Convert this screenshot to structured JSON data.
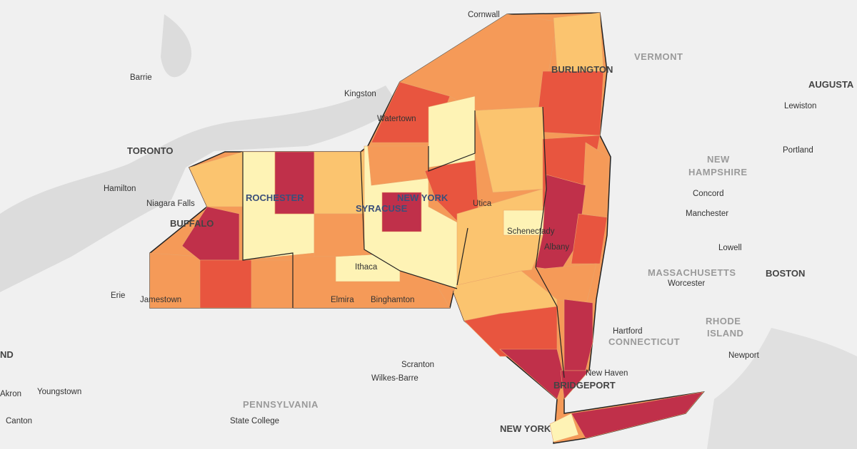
{
  "map": {
    "labels": [
      "Cornwall",
      "VERMONT",
      "Barrie",
      "BURLINGTON",
      "AUGUSTA",
      "Kingston",
      "Watertown",
      "Lewiston",
      "TORONTO",
      "NEW",
      "HAMPSHIRE",
      "Portland",
      "Hamilton",
      "ROCHESTER",
      "NEW YORK",
      "Utica",
      "Concord",
      "Niagara Falls",
      "SYRACUSE",
      "Manchester",
      "BUFFALO",
      "Schenectady",
      "Albany",
      "Lowell",
      "MASSACHUSETTS",
      "BOSTON",
      "Worcester",
      "Erie",
      "Jamestown",
      "Ithaca",
      "Elmira",
      "Binghamton",
      "Hartford",
      "RHODE",
      "ISLAND",
      "CONNECTICUT",
      "Newport",
      "Scranton",
      "Wilkes-Barre",
      "New Haven",
      "ND",
      "Akron",
      "Youngstown",
      "BRIDGEPORT",
      "PENNSYLVANIA",
      "Canton",
      "State College",
      "NEW YORK"
    ]
  }
}
